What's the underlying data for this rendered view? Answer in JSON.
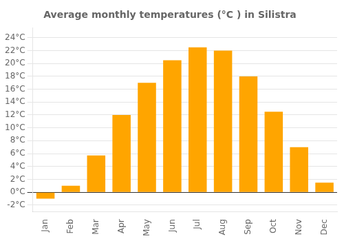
{
  "chart_data": {
    "type": "bar",
    "title": "Average monthly temperatures (°C ) in Silistra",
    "categories": [
      "Jan",
      "Feb",
      "Mar",
      "Apr",
      "May",
      "Jun",
      "Jul",
      "Aug",
      "Sep",
      "Oct",
      "Nov",
      "Dec"
    ],
    "values": [
      -1.0,
      1.0,
      5.7,
      12.0,
      17.0,
      20.5,
      22.5,
      22.0,
      18.0,
      12.5,
      7.0,
      1.5
    ],
    "color": "#FFA500",
    "ylim": [
      -3.0,
      25.5
    ],
    "yticks": [
      {
        "value": -2,
        "label": "-2°C"
      },
      {
        "value": 0,
        "label": "0°C"
      },
      {
        "value": 2,
        "label": "2°C"
      },
      {
        "value": 4,
        "label": "4°C"
      },
      {
        "value": 6,
        "label": "6°C"
      },
      {
        "value": 8,
        "label": "8°C"
      },
      {
        "value": 10,
        "label": "10°C"
      },
      {
        "value": 12,
        "label": "12°C"
      },
      {
        "value": 14,
        "label": "14°C"
      },
      {
        "value": 16,
        "label": "16°C"
      },
      {
        "value": 18,
        "label": "18°C"
      },
      {
        "value": 20,
        "label": "20°C"
      },
      {
        "value": 22,
        "label": "22°C"
      },
      {
        "value": 24,
        "label": "24°C"
      }
    ],
    "grid": true
  }
}
